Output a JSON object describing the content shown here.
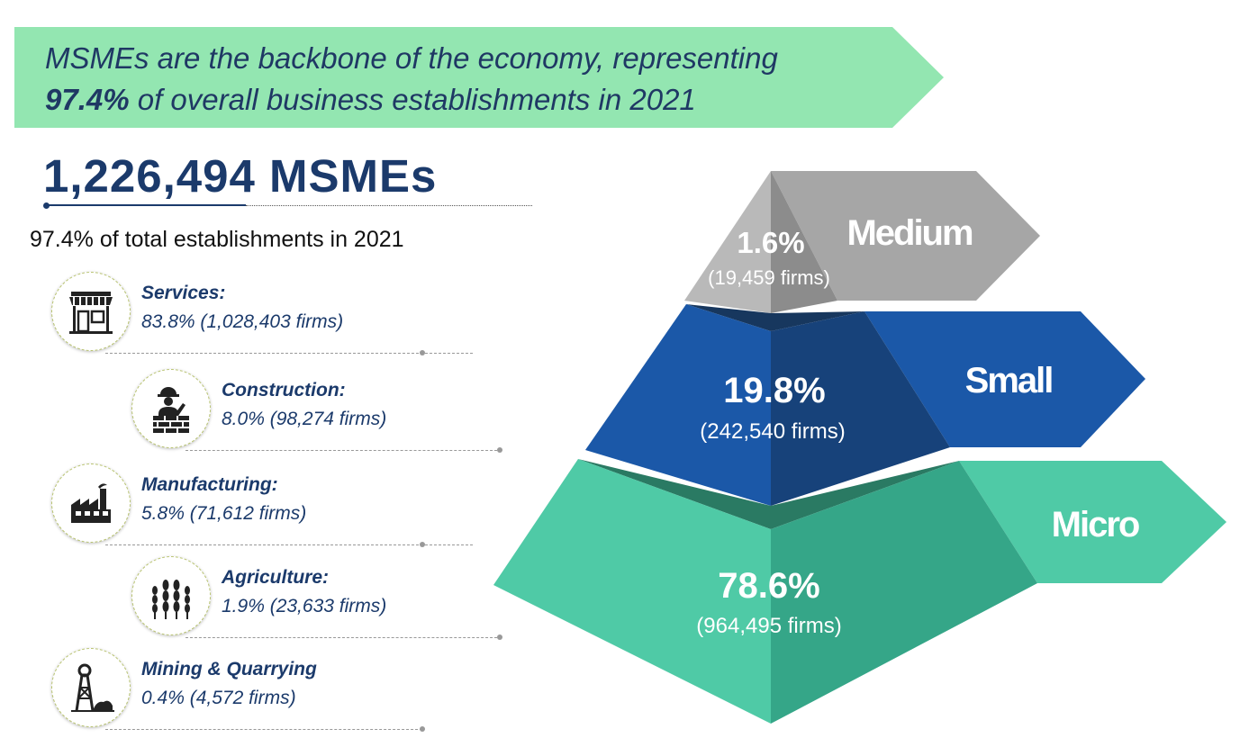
{
  "banner": {
    "line1": "MSMEs are the backbone of the economy, representing",
    "highlight": "97.4%",
    "line2_rest": " of overall business establishments in 2021",
    "color": "#93e6b1"
  },
  "total": {
    "headline": "1,226,494 MSMEs",
    "subtitle": "97.4% of total establishments in 2021"
  },
  "sectors": [
    {
      "name": "Services:",
      "value": "83.8% (1,028,403 firms)",
      "icon": "storefront-icon"
    },
    {
      "name": "Construction:",
      "value": "8.0% (98,274 firms)",
      "icon": "construction-worker-icon"
    },
    {
      "name": "Manufacturing:",
      "value": "5.8% (71,612 firms)",
      "icon": "factory-icon"
    },
    {
      "name": "Agriculture:",
      "value": "1.9% (23,633 firms)",
      "icon": "wheat-icon"
    },
    {
      "name": "Mining & Quarrying",
      "value": "0.4% (4,572 firms)",
      "icon": "mine-headframe-icon"
    }
  ],
  "pyramid": [
    {
      "label": "Medium",
      "percent": "1.6%",
      "firms": "(19,459 firms)",
      "color": "#a6a6a6"
    },
    {
      "label": "Small",
      "percent": "19.8%",
      "firms": "(242,540 firms)",
      "color": "#1b58a8"
    },
    {
      "label": "Micro",
      "percent": "78.6%",
      "firms": "(964,495 firms)",
      "color": "#4fcaa6"
    }
  ]
}
